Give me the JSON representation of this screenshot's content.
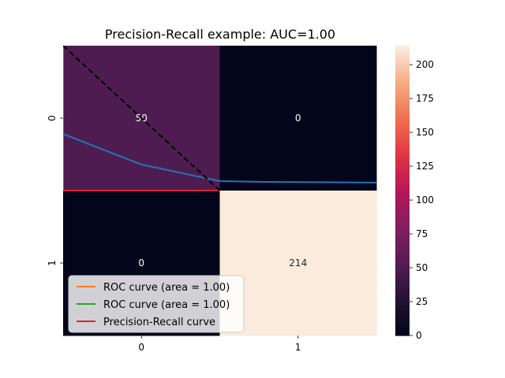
{
  "chart_data": {
    "type": "heatmap",
    "title": "Precision-Recall example: AUC=1.00",
    "row_labels": [
      "0",
      "1"
    ],
    "col_labels": [
      "0",
      "1"
    ],
    "matrix": [
      [
        50,
        0
      ],
      [
        0,
        214
      ]
    ],
    "colorbar": {
      "min": 0,
      "max": 214,
      "ticks": [
        0,
        25,
        50,
        75,
        100,
        125,
        150,
        175,
        200
      ],
      "colormap": "rocket"
    },
    "overlay_series": [
      {
        "name": "ROC curve (area = 1.00)",
        "color": "#ff7f0e",
        "points": []
      },
      {
        "name": "ROC curve (area = 1.00)",
        "color": "#2ca02c",
        "points": [
          [
            0.0,
            0.0
          ],
          [
            0.0,
            1.0
          ]
        ]
      },
      {
        "name": "Precision-Recall curve",
        "color": "#d62728",
        "points": [
          [
            0.0,
            1.0
          ],
          [
            1.0,
            1.0
          ]
        ]
      },
      {
        "color": "#1f77b4",
        "points": [
          [
            0.0,
            0.61
          ],
          [
            0.5,
            0.82
          ],
          [
            1.0,
            0.935
          ],
          [
            1.3,
            0.94
          ],
          [
            2.0,
            0.945
          ]
        ]
      },
      {
        "color": "#000000",
        "style": "dashed",
        "points": [
          [
            0.0,
            0.0
          ],
          [
            1.0,
            1.0
          ]
        ]
      }
    ],
    "legend": {
      "position": "lower-left",
      "entries": [
        {
          "label": "ROC curve (area = 1.00)",
          "color": "#ff7f0e"
        },
        {
          "label": "ROC curve (area = 1.00)",
          "color": "#2ca02c"
        },
        {
          "label": "Precision-Recall curve",
          "color": "#d62728"
        }
      ]
    }
  }
}
